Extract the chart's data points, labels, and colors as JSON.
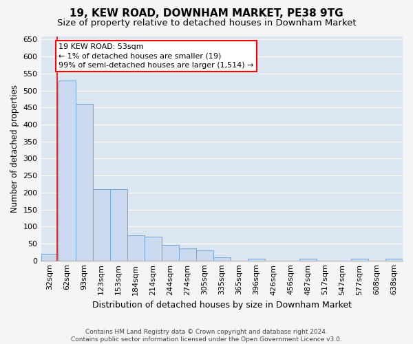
{
  "title": "19, KEW ROAD, DOWNHAM MARKET, PE38 9TG",
  "subtitle": "Size of property relative to detached houses in Downham Market",
  "xlabel": "Distribution of detached houses by size in Downham Market",
  "ylabel": "Number of detached properties",
  "bar_labels": [
    "32sqm",
    "62sqm",
    "93sqm",
    "123sqm",
    "153sqm",
    "184sqm",
    "214sqm",
    "244sqm",
    "274sqm",
    "305sqm",
    "335sqm",
    "365sqm",
    "396sqm",
    "426sqm",
    "456sqm",
    "487sqm",
    "517sqm",
    "547sqm",
    "577sqm",
    "608sqm",
    "638sqm"
  ],
  "bar_values": [
    19,
    530,
    460,
    210,
    210,
    75,
    70,
    45,
    35,
    30,
    10,
    0,
    5,
    0,
    0,
    5,
    0,
    0,
    5,
    0,
    5
  ],
  "bar_color": "#cad9ed",
  "bar_edge_color": "#6fa8d8",
  "plot_bg_color": "#dce6f1",
  "fig_bg_color": "#f5f5f5",
  "grid_color": "#ffffff",
  "ylim": [
    0,
    660
  ],
  "yticks": [
    0,
    50,
    100,
    150,
    200,
    250,
    300,
    350,
    400,
    450,
    500,
    550,
    600,
    650
  ],
  "red_line_x": 0.45,
  "annotation_text_line1": "19 KEW ROAD: 53sqm",
  "annotation_text_line2": "← 1% of detached houses are smaller (19)",
  "annotation_text_line3": "99% of semi-detached houses are larger (1,514) →",
  "footer_line1": "Contains HM Land Registry data © Crown copyright and database right 2024.",
  "footer_line2": "Contains public sector information licensed under the Open Government Licence v3.0.",
  "title_fontsize": 11,
  "subtitle_fontsize": 9.5,
  "xlabel_fontsize": 9,
  "ylabel_fontsize": 8.5,
  "tick_fontsize": 8,
  "annotation_fontsize": 8,
  "footer_fontsize": 6.5
}
